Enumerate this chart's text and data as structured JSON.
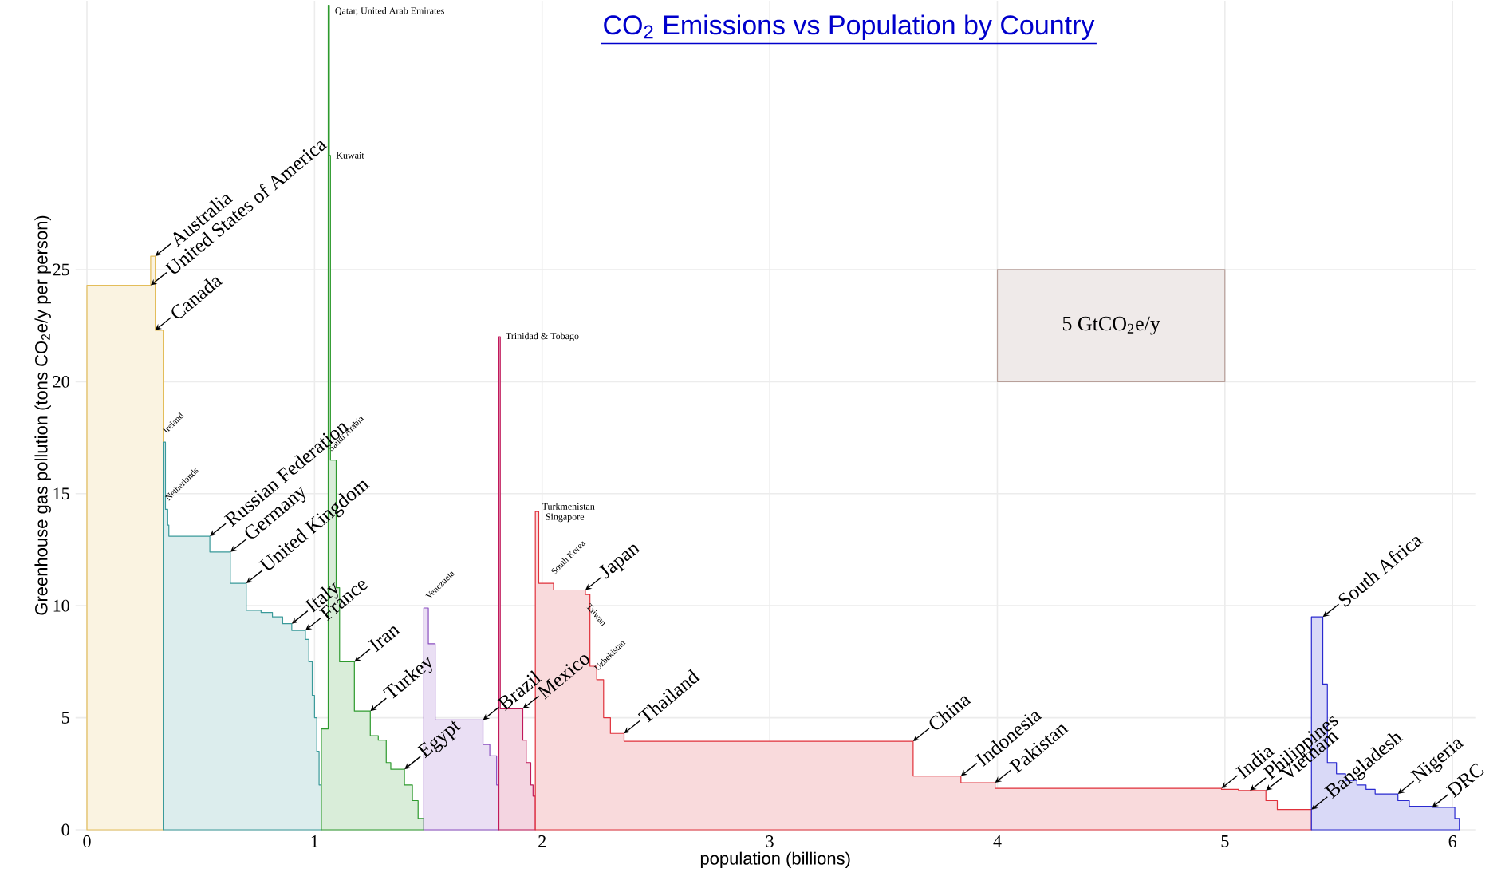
{
  "chart_data": {
    "type": "area",
    "title": "CO$_{2}$ Emissions vs Population by Country",
    "xlabel": "population (billions)",
    "ylabel": "Greenhouse gas pollution (tons CO$_{2}$e/y per person)",
    "xlim": [
      -0.05,
      6.1
    ],
    "ylim": [
      0,
      37
    ],
    "xticks": [
      0,
      1,
      2,
      3,
      4,
      5,
      6
    ],
    "yticks": [
      0,
      5,
      10,
      15,
      20,
      25
    ],
    "grid": true,
    "series": [
      {
        "color": "#e3bd5a",
        "x": [
          0,
          0.28,
          0.28,
          0.3,
          0.3,
          0.335
        ],
        "values": [
          24.3,
          24.3,
          25.6,
          25.6,
          22.3,
          22.3
        ]
      },
      {
        "color": "#3a9a9a",
        "x": [
          0.335,
          0.345,
          0.345,
          0.355,
          0.355,
          0.36,
          0.36,
          0.54,
          0.54,
          0.63,
          0.63,
          0.7,
          0.7,
          0.765,
          0.765,
          0.815,
          0.815,
          0.86,
          0.86,
          0.9,
          0.9,
          0.96,
          0.96,
          0.975,
          0.975,
          0.99,
          0.99,
          1.0,
          1.0,
          1.01,
          1.01,
          1.02,
          1.02,
          1.03
        ],
        "values": [
          17.3,
          17.3,
          14.3,
          14.3,
          13.6,
          13.6,
          13.1,
          13.1,
          12.4,
          12.4,
          11.0,
          11.0,
          9.8,
          9.8,
          9.7,
          9.7,
          9.5,
          9.5,
          9.2,
          9.2,
          8.9,
          8.9,
          8.5,
          8.5,
          7.5,
          7.5,
          6.0,
          6.0,
          5.0,
          5.0,
          3.5,
          3.5,
          2.0,
          2.0
        ]
      },
      {
        "color": "#2e9a2e",
        "x": [
          1.03,
          1.06,
          1.06,
          1.065,
          1.065,
          1.07,
          1.07,
          1.095,
          1.095,
          1.11,
          1.11,
          1.175,
          1.175,
          1.245,
          1.245,
          1.28,
          1.28,
          1.315,
          1.315,
          1.335,
          1.335,
          1.395,
          1.395,
          1.43,
          1.43,
          1.455,
          1.455,
          1.48
        ],
        "values": [
          4.5,
          4.5,
          36.8,
          36.8,
          30.1,
          30.1,
          16.5,
          16.5,
          10.8,
          10.8,
          7.5,
          7.5,
          5.3,
          5.3,
          4.2,
          4.2,
          4.0,
          4.0,
          3.0,
          3.0,
          2.7,
          2.7,
          2.0,
          2.0,
          1.3,
          1.3,
          0.5,
          0.5
        ]
      },
      {
        "color": "#8a4fc0",
        "x": [
          1.48,
          1.5,
          1.5,
          1.53,
          1.53,
          1.74,
          1.74,
          1.77,
          1.77,
          1.8,
          1.8,
          1.81
        ],
        "values": [
          9.9,
          9.9,
          8.3,
          8.3,
          4.9,
          4.9,
          3.8,
          3.8,
          3.3,
          3.3,
          2.0,
          2.0
        ]
      },
      {
        "color": "#c0185a",
        "x": [
          1.81,
          1.816,
          1.816,
          1.915,
          1.915,
          1.93,
          1.93,
          1.95,
          1.95,
          1.96,
          1.96,
          1.97
        ],
        "values": [
          22.0,
          22.0,
          5.4,
          5.4,
          4.0,
          4.0,
          3.0,
          3.0,
          2.0,
          2.0,
          1.5,
          1.5
        ]
      },
      {
        "color": "#e0303a",
        "x": [
          1.97,
          1.985,
          1.985,
          2.05,
          2.05,
          2.19,
          2.19,
          2.21,
          2.21,
          2.24,
          2.24,
          2.27,
          2.27,
          2.3,
          2.3,
          2.36,
          2.36,
          3.63,
          3.63,
          3.84,
          3.84,
          3.99,
          3.99,
          4.985,
          4.985,
          5.06,
          5.06,
          5.11,
          5.11,
          5.18,
          5.18,
          5.23,
          5.23,
          5.38
        ],
        "values": [
          14.2,
          14.2,
          11.0,
          11.0,
          10.7,
          10.7,
          10.5,
          10.5,
          7.3,
          7.3,
          6.7,
          6.7,
          5.0,
          5.0,
          4.3,
          4.3,
          3.95,
          3.95,
          2.4,
          2.4,
          2.1,
          2.1,
          1.85,
          1.85,
          1.8,
          1.8,
          1.75,
          1.75,
          1.75,
          1.75,
          1.3,
          1.3,
          0.9,
          0.9
        ]
      },
      {
        "color": "#2a2ad0",
        "x": [
          5.38,
          5.43,
          5.43,
          5.45,
          5.45,
          5.49,
          5.49,
          5.53,
          5.53,
          5.58,
          5.58,
          5.62,
          5.62,
          5.66,
          5.66,
          5.76,
          5.76,
          5.81,
          5.81,
          5.91,
          5.91,
          6.01,
          6.01,
          6.03
        ],
        "values": [
          9.5,
          9.5,
          6.5,
          6.5,
          3.0,
          3.0,
          2.5,
          2.5,
          2.2,
          2.2,
          2.0,
          2.0,
          1.8,
          1.8,
          1.6,
          1.6,
          1.3,
          1.3,
          1.05,
          1.05,
          1.0,
          1.0,
          0.5,
          0.5
        ]
      },
      {
        "type": "bar",
        "name": "5 GtCO$_{2}$e/y",
        "color": "#b8a09a",
        "x": [
          4.5
        ],
        "values": [
          5
        ],
        "base": [
          20
        ]
      }
    ],
    "annotations": [
      {
        "text": "Australia",
        "x": 0.3,
        "y": 25.6
      },
      {
        "text": "United States of America",
        "x": 0.28,
        "y": 24.3
      },
      {
        "text": "Canada",
        "x": 0.3,
        "y": 22.3
      },
      {
        "text": "Russian Federation",
        "x": 0.54,
        "y": 13.1
      },
      {
        "text": "Germany",
        "x": 0.63,
        "y": 12.4
      },
      {
        "text": "United Kingdom",
        "x": 0.7,
        "y": 11.0
      },
      {
        "text": "Italy",
        "x": 0.9,
        "y": 9.2
      },
      {
        "text": "France",
        "x": 0.96,
        "y": 8.9
      },
      {
        "text": "Iran",
        "x": 1.175,
        "y": 7.5
      },
      {
        "text": "Turkey",
        "x": 1.245,
        "y": 5.3
      },
      {
        "text": "Egypt",
        "x": 1.395,
        "y": 2.7
      },
      {
        "text": "Brazil",
        "x": 1.74,
        "y": 4.9
      },
      {
        "text": "Mexico",
        "x": 1.915,
        "y": 5.4
      },
      {
        "text": "Japan",
        "x": 2.19,
        "y": 10.7
      },
      {
        "text": "Thailand",
        "x": 2.36,
        "y": 4.3
      },
      {
        "text": "China",
        "x": 3.63,
        "y": 3.95
      },
      {
        "text": "Indonesia",
        "x": 3.84,
        "y": 2.4
      },
      {
        "text": "Pakistan",
        "x": 3.99,
        "y": 2.1
      },
      {
        "text": "India",
        "x": 4.985,
        "y": 1.85
      },
      {
        "text": "Philippines",
        "x": 5.11,
        "y": 1.75
      },
      {
        "text": "Vietnam",
        "x": 5.18,
        "y": 1.75
      },
      {
        "text": "Bangladesh",
        "x": 5.38,
        "y": 0.9
      },
      {
        "text": "South Africa",
        "x": 5.43,
        "y": 9.5
      },
      {
        "text": "Nigeria",
        "x": 5.76,
        "y": 1.6
      },
      {
        "text": "DRC",
        "x": 5.91,
        "y": 1.0
      },
      {
        "text": "Ireland",
        "x": 0.345,
        "y": 17.3
      },
      {
        "text": "Netherlands",
        "x": 0.355,
        "y": 14.3
      },
      {
        "text": "Saudi Arabia",
        "x": 1.07,
        "y": 16.5
      },
      {
        "text": "Venezuela",
        "x": 1.5,
        "y": 9.9
      },
      {
        "text": "South Korea",
        "x": 2.05,
        "y": 11.0
      },
      {
        "text": "Taiwan",
        "x": 2.21,
        "y": 10.5
      },
      {
        "text": "Uzbekistan",
        "x": 2.24,
        "y": 6.7
      },
      {
        "text": "Qatar, United Arab Emirates",
        "x": 1.06,
        "y": 36.8
      },
      {
        "text": "Kuwait",
        "x": 1.065,
        "y": 30.1
      },
      {
        "text": "Trinidad & Tobago",
        "x": 1.81,
        "y": 22.0
      },
      {
        "text": "Turkmenistan",
        "x": 1.97,
        "y": 14.2
      },
      {
        "text": "Singapore",
        "x": 1.985,
        "y": 14.2
      }
    ]
  }
}
